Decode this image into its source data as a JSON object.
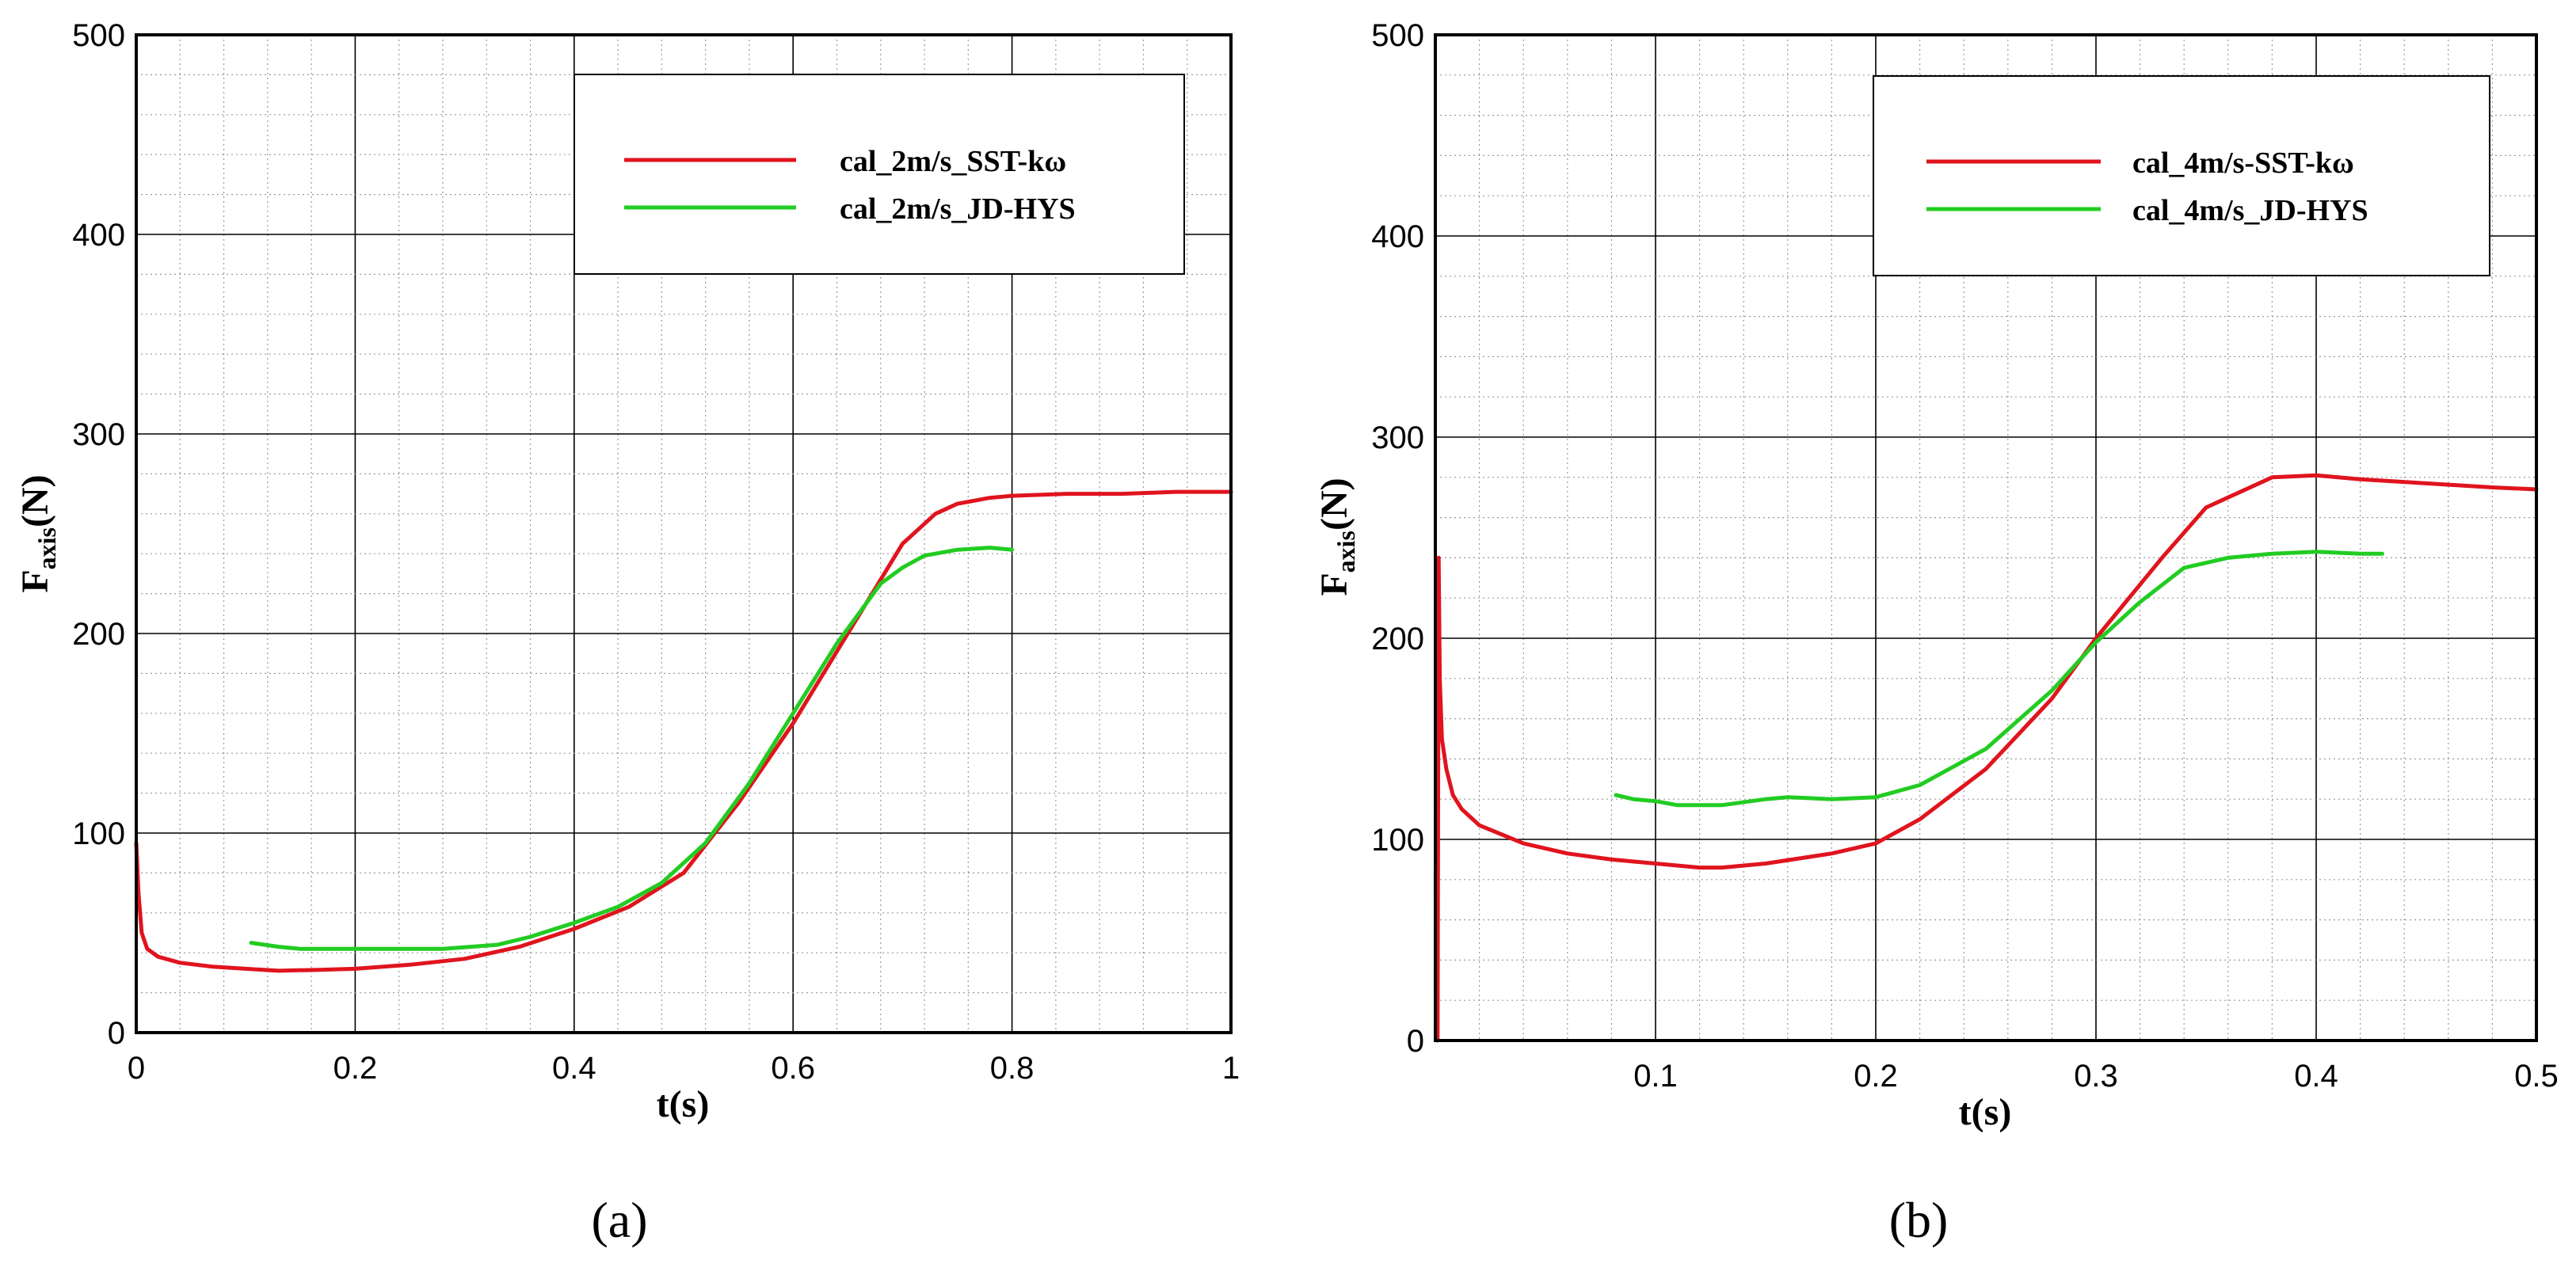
{
  "chart_data": [
    {
      "type": "line",
      "panel_label": "(a)",
      "xlabel": "t(s)",
      "ylabel_main": "F",
      "ylabel_sub": "axis",
      "ylabel_unit": "(N)",
      "xlim": [
        0,
        1
      ],
      "ylim": [
        0,
        500
      ],
      "xticks": [
        0,
        0.2,
        0.4,
        0.6,
        0.8,
        1
      ],
      "xtick_labels": [
        "0",
        "0.2",
        "0.4",
        "0.6",
        "0.8",
        "1"
      ],
      "yticks": [
        0,
        100,
        200,
        300,
        400,
        500
      ],
      "ytick_labels": [
        "0",
        "100",
        "200",
        "300",
        "400",
        "500"
      ],
      "grid": true,
      "legend_position": "top-right",
      "series": [
        {
          "name": "cal_2m/s_SST-kω",
          "color": "#e0141e",
          "x": [
            0.0,
            0.002,
            0.005,
            0.01,
            0.02,
            0.04,
            0.07,
            0.1,
            0.13,
            0.17,
            0.2,
            0.25,
            0.3,
            0.35,
            0.4,
            0.45,
            0.5,
            0.55,
            0.6,
            0.65,
            0.7,
            0.73,
            0.75,
            0.78,
            0.8,
            0.85,
            0.9,
            0.95,
            1.0
          ],
          "y": [
            95,
            70,
            50,
            42,
            38,
            35,
            33,
            32,
            31,
            31.5,
            32,
            34,
            37,
            43,
            52,
            63,
            80,
            115,
            155,
            200,
            245,
            260,
            265,
            268,
            269,
            270,
            270,
            271,
            271
          ]
        },
        {
          "name": "cal_2m/s_JD-HYS",
          "color": "#22cc22",
          "x": [
            0.105,
            0.13,
            0.15,
            0.2,
            0.25,
            0.28,
            0.33,
            0.36,
            0.4,
            0.44,
            0.48,
            0.52,
            0.56,
            0.6,
            0.64,
            0.68,
            0.7,
            0.72,
            0.75,
            0.78,
            0.8
          ],
          "y": [
            45,
            43,
            42,
            42,
            42,
            42,
            44,
            48,
            55,
            63,
            75,
            95,
            125,
            160,
            195,
            225,
            233,
            239,
            242,
            243,
            242
          ]
        }
      ]
    },
    {
      "type": "line",
      "panel_label": "(b)",
      "xlabel": "t(s)",
      "ylabel_main": "F",
      "ylabel_sub": "axis",
      "ylabel_unit": "(N)",
      "xlim": [
        0,
        0.5
      ],
      "ylim": [
        0,
        500
      ],
      "xticks": [
        0.1,
        0.2,
        0.3,
        0.4,
        0.5
      ],
      "xtick_labels": [
        "0.1",
        "0.2",
        "0.3",
        "0.4",
        "0.5"
      ],
      "yticks": [
        0,
        100,
        200,
        300,
        400,
        500
      ],
      "ytick_labels": [
        "0",
        "100",
        "200",
        "300",
        "400",
        "500"
      ],
      "grid": true,
      "legend_position": "top-right",
      "series": [
        {
          "name": "cal_4m/s-SST-kω",
          "color": "#e0141e",
          "x": [
            0.001,
            0.0015,
            0.002,
            0.003,
            0.005,
            0.008,
            0.012,
            0.02,
            0.04,
            0.06,
            0.08,
            0.1,
            0.12,
            0.13,
            0.15,
            0.18,
            0.2,
            0.22,
            0.25,
            0.28,
            0.3,
            0.33,
            0.35,
            0.38,
            0.4,
            0.42,
            0.45,
            0.48,
            0.5
          ],
          "y": [
            0,
            240,
            180,
            150,
            135,
            122,
            115,
            107,
            98,
            93,
            90,
            88,
            86,
            86,
            88,
            93,
            98,
            110,
            135,
            170,
            200,
            240,
            265,
            280,
            281,
            279,
            277,
            275,
            274
          ]
        },
        {
          "name": "cal_4m/s_JD-HYS",
          "color": "#22cc22",
          "x": [
            0.082,
            0.09,
            0.1,
            0.11,
            0.13,
            0.15,
            0.16,
            0.18,
            0.2,
            0.22,
            0.25,
            0.28,
            0.3,
            0.32,
            0.34,
            0.36,
            0.38,
            0.4,
            0.42,
            0.43
          ],
          "y": [
            122,
            120,
            119,
            117,
            117,
            120,
            121,
            120,
            121,
            127,
            145,
            174,
            198,
            218,
            235,
            240,
            242,
            243,
            242,
            242
          ]
        }
      ]
    }
  ]
}
